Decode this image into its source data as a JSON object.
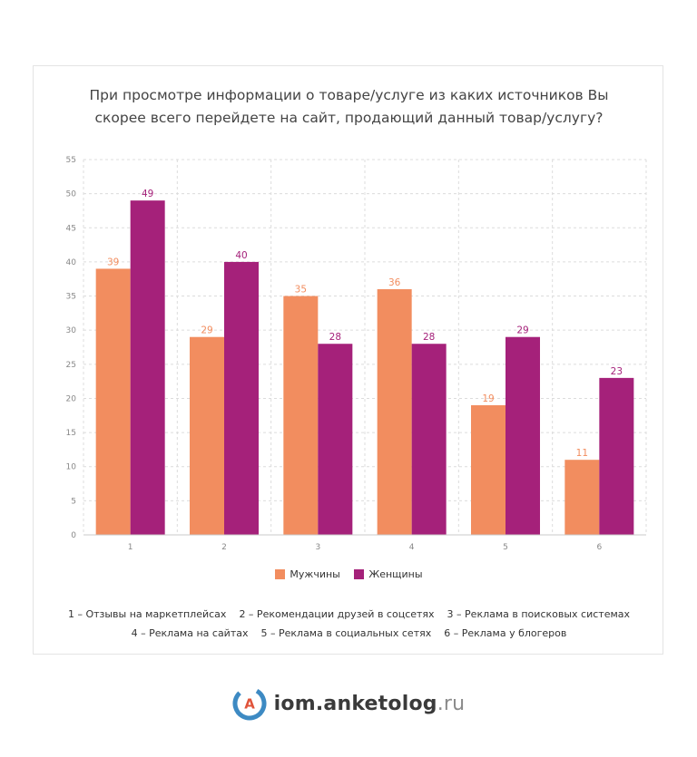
{
  "title_lines": [
    "При просмотре информации о товаре/услуге из каких источников Вы",
    "скорее всего перейдете на сайт, продающий данный товар/услугу?"
  ],
  "chart_data": {
    "type": "bar",
    "title": "При просмотре информации о товаре/услуге из каких источников Вы скорее всего перейдете на сайт, продающий данный товар/услугу?",
    "categories": [
      "1",
      "2",
      "3",
      "4",
      "5",
      "6"
    ],
    "series": [
      {
        "name": "Мужчины",
        "color": "#f28d5f",
        "values": [
          39,
          29,
          35,
          36,
          19,
          11
        ]
      },
      {
        "name": "Женщины",
        "color": "#a5217a",
        "values": [
          49,
          40,
          28,
          28,
          29,
          23
        ]
      }
    ],
    "ylim": [
      0,
      55
    ],
    "yticks": [
      0,
      5,
      10,
      15,
      20,
      25,
      30,
      35,
      40,
      45,
      50,
      55
    ],
    "grid": true,
    "legend_position": "bottom",
    "category_notes": [
      "1 – Отзывы на маркетплейсах",
      "2 – Рекомендации друзей в соцсетях",
      "3 – Реклама в поисковых системах",
      "4 – Реклама на сайтах",
      "5 – Реклама в социальных сетях",
      "6 – Реклама у блогеров"
    ]
  },
  "brand": {
    "icon_letter": "A",
    "name": "iom.anketolog",
    "tld": ".ru",
    "icon_color": "#3d8ac3",
    "icon_letter_color": "#e0533a"
  }
}
